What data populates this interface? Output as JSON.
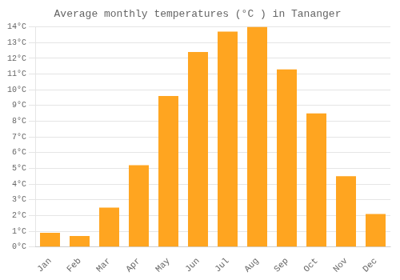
{
  "chart_data": {
    "type": "bar",
    "title": "Average monthly temperatures (°C ) in Tananger",
    "categories": [
      "Jan",
      "Feb",
      "Mar",
      "Apr",
      "May",
      "Jun",
      "Jul",
      "Aug",
      "Sep",
      "Oct",
      "Nov",
      "Dec"
    ],
    "values": [
      0.9,
      0.7,
      2.5,
      5.2,
      9.6,
      12.4,
      13.7,
      14.0,
      11.3,
      8.5,
      4.5,
      2.1
    ],
    "color": "#FFA520",
    "ylim": [
      0,
      14
    ],
    "yticks": [
      {
        "value": 0,
        "label": "0°C"
      },
      {
        "value": 1,
        "label": "1°C"
      },
      {
        "value": 2,
        "label": "2°C"
      },
      {
        "value": 3,
        "label": "3°C"
      },
      {
        "value": 4,
        "label": "4°C"
      },
      {
        "value": 5,
        "label": "5°C"
      },
      {
        "value": 6,
        "label": "6°C"
      },
      {
        "value": 7,
        "label": "7°C"
      },
      {
        "value": 8,
        "label": "8°C"
      },
      {
        "value": 9,
        "label": "9°C"
      },
      {
        "value": 10,
        "label": "10°C"
      },
      {
        "value": 11,
        "label": "11°C"
      },
      {
        "value": 12,
        "label": "12°C"
      },
      {
        "value": 13,
        "label": "13°C"
      },
      {
        "value": 14,
        "label": "14°C"
      }
    ],
    "grid": true
  }
}
